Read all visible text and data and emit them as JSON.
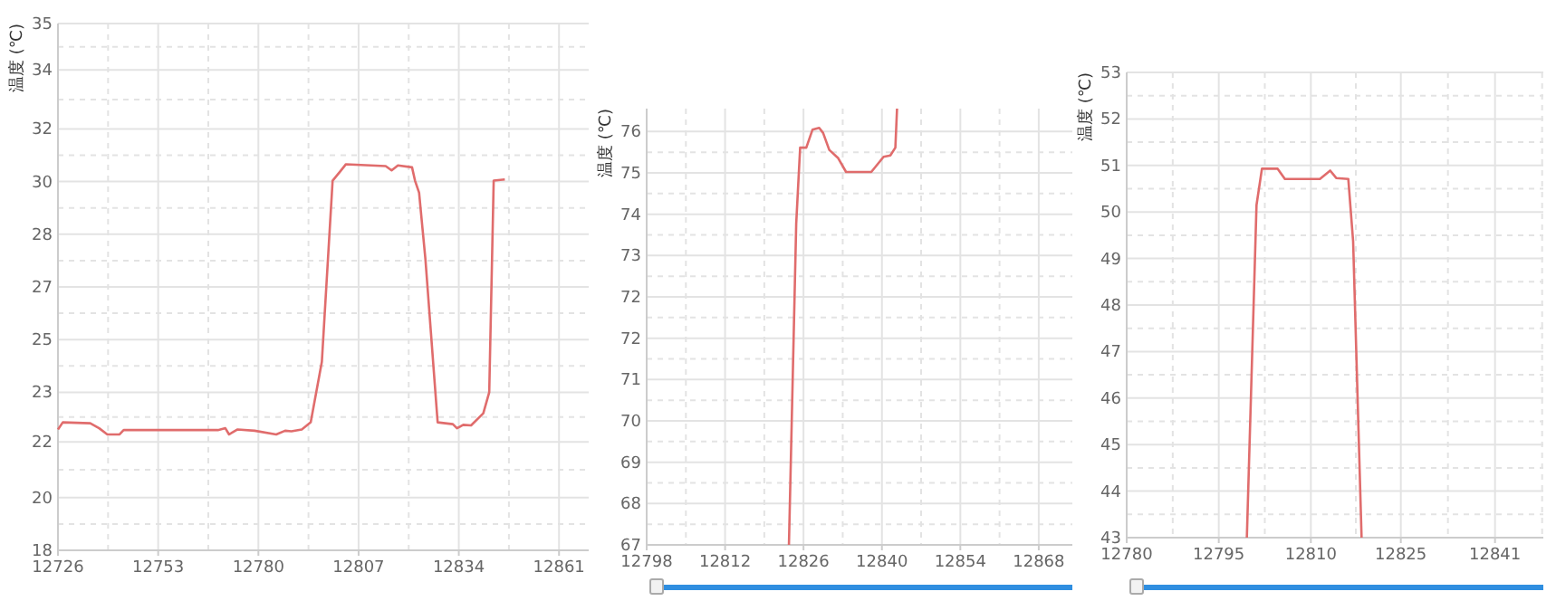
{
  "chart_data": [
    {
      "type": "line",
      "ylabel": "温度 (℃)",
      "color": "#e06c6c",
      "marker": "none",
      "line_style": "solid",
      "grid": true,
      "x": [
        12726,
        12727.3,
        12734.7,
        12737.1,
        12739.3,
        12742.6,
        12743.7,
        12769.1,
        12771.1,
        12772.1,
        12774.4,
        12779,
        12784.8,
        12787.2,
        12788.9,
        12791.7,
        12794.1,
        12797.1,
        12800,
        12802,
        12803.6,
        12814.3,
        12815.9,
        12817.6,
        12821.4,
        12822.2,
        12823.3,
        12825,
        12828.3,
        12832.4,
        12833.5,
        12835.2,
        12837.3,
        12840.6,
        12842.2,
        12843.4,
        12846.4
      ],
      "values": [
        21.9,
        22.13,
        22.1,
        21.94,
        21.74,
        21.74,
        21.88,
        21.88,
        21.94,
        21.74,
        21.9,
        21.86,
        21.74,
        21.86,
        21.84,
        21.9,
        22.13,
        24.08,
        29.93,
        30.22,
        30.46,
        30.4,
        30.26,
        30.42,
        30.36,
        29.93,
        29.54,
        27.4,
        22.13,
        22.07,
        21.94,
        22.05,
        22.03,
        22.42,
        23.1,
        29.93,
        29.97
      ],
      "xlim": [
        12726,
        12869
      ],
      "xticks": [
        12726,
        12753,
        12780,
        12807,
        12834,
        12861
      ],
      "ylim": [
        18,
        35
      ],
      "yticks": [
        18,
        {
          "value": 19.7,
          "label": "20"
        },
        {
          "value": 21.5,
          "label": "22"
        },
        {
          "value": 23.1,
          "label": "23"
        },
        {
          "value": 24.8,
          "label": "25"
        },
        {
          "value": 26.5,
          "label": "27"
        },
        {
          "value": 28.2,
          "label": "28"
        },
        {
          "value": 29.9,
          "label": "30"
        },
        {
          "value": 31.6,
          "label": "32"
        },
        {
          "value": 33.5,
          "label": "34"
        },
        35
      ]
    },
    {
      "type": "line",
      "ylabel": "温度 (℃)",
      "color": "#e06c6c",
      "marker": "none",
      "line_style": "solid",
      "grid": true,
      "x": [
        12823.4,
        12824.7,
        12825.4,
        12826.5,
        12827.6,
        12828.8,
        12829.5,
        12830.6,
        12832.2,
        12833.6,
        12838.1,
        12840.3,
        12841.5,
        12842.4,
        12842.7
      ],
      "values": [
        67,
        74,
        75.65,
        75.65,
        76.04,
        76.08,
        75.97,
        75.6,
        75.42,
        75.12,
        75.12,
        75.45,
        75.48,
        75.65,
        76.5
      ],
      "xlim": [
        12798,
        12874
      ],
      "xticks": [
        12798,
        12812,
        12826,
        12840,
        12854,
        12868
      ],
      "ylim": [
        67,
        76.5
      ],
      "yticks": [
        67,
        {
          "value": 67.9,
          "label": "68"
        },
        {
          "value": 68.8,
          "label": "69"
        },
        {
          "value": 69.7,
          "label": "70"
        },
        {
          "value": 70.6,
          "label": "71"
        },
        {
          "value": 71.5,
          "label": "72"
        },
        {
          "value": 72.4,
          "label": "72"
        },
        {
          "value": 73.3,
          "label": "73"
        },
        {
          "value": 74.2,
          "label": "74"
        },
        {
          "value": 75.1,
          "label": "75"
        },
        76
      ]
    },
    {
      "type": "line",
      "ylabel": "温度 (℃)",
      "color": "#e06c6c",
      "marker": "none",
      "line_style": "solid",
      "grid": true,
      "x": [
        12799.9,
        12801.5,
        12802.4,
        12805,
        12806.2,
        12812,
        12813.7,
        12814.7,
        12816.7,
        12817.5,
        12818.9
      ],
      "values": [
        43,
        50.15,
        50.93,
        50.93,
        50.71,
        50.71,
        50.89,
        50.73,
        50.71,
        49.37,
        43
      ],
      "xlim": [
        12780,
        12849
      ],
      "xticks": [
        12780,
        {
          "value": 12795.25,
          "label": "12795"
        },
        {
          "value": 12810.5,
          "label": "12810"
        },
        {
          "value": 12825.4,
          "label": "12825"
        },
        12841
      ],
      "ylim": [
        43,
        53
      ],
      "yticks": [
        43,
        44,
        45,
        46,
        47,
        48,
        49,
        50,
        51,
        52,
        53
      ]
    }
  ]
}
